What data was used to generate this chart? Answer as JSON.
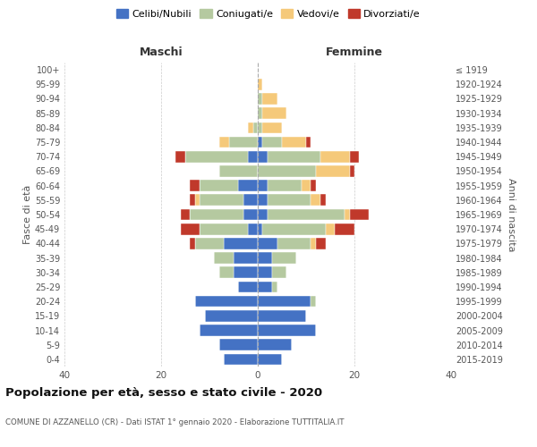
{
  "age_groups": [
    "0-4",
    "5-9",
    "10-14",
    "15-19",
    "20-24",
    "25-29",
    "30-34",
    "35-39",
    "40-44",
    "45-49",
    "50-54",
    "55-59",
    "60-64",
    "65-69",
    "70-74",
    "75-79",
    "80-84",
    "85-89",
    "90-94",
    "95-99",
    "100+"
  ],
  "birth_years": [
    "2015-2019",
    "2010-2014",
    "2005-2009",
    "2000-2004",
    "1995-1999",
    "1990-1994",
    "1985-1989",
    "1980-1984",
    "1975-1979",
    "1970-1974",
    "1965-1969",
    "1960-1964",
    "1955-1959",
    "1950-1954",
    "1945-1949",
    "1940-1944",
    "1935-1939",
    "1930-1934",
    "1925-1929",
    "1920-1924",
    "≤ 1919"
  ],
  "colors": {
    "celibi": "#4472c4",
    "coniugati": "#b5c9a0",
    "vedovi": "#f5c97a",
    "divorziati": "#c0392b"
  },
  "maschi": {
    "celibi": [
      7,
      8,
      12,
      11,
      13,
      4,
      5,
      5,
      7,
      2,
      3,
      3,
      4,
      0,
      2,
      0,
      0,
      0,
      0,
      0,
      0
    ],
    "coniugati": [
      0,
      0,
      0,
      0,
      0,
      0,
      3,
      4,
      6,
      10,
      11,
      9,
      8,
      8,
      13,
      6,
      1,
      0,
      0,
      0,
      0
    ],
    "vedovi": [
      0,
      0,
      0,
      0,
      0,
      0,
      0,
      0,
      0,
      0,
      0,
      1,
      0,
      0,
      0,
      2,
      1,
      0,
      0,
      0,
      0
    ],
    "divorziati": [
      0,
      0,
      0,
      0,
      0,
      0,
      0,
      0,
      1,
      4,
      2,
      1,
      2,
      0,
      2,
      0,
      0,
      0,
      0,
      0,
      0
    ]
  },
  "femmine": {
    "celibi": [
      5,
      7,
      12,
      10,
      11,
      3,
      3,
      3,
      4,
      1,
      2,
      2,
      2,
      0,
      2,
      1,
      0,
      0,
      0,
      0,
      0
    ],
    "coniugati": [
      0,
      0,
      0,
      0,
      1,
      1,
      3,
      5,
      7,
      13,
      16,
      9,
      7,
      12,
      11,
      4,
      1,
      1,
      1,
      0,
      0
    ],
    "vedovi": [
      0,
      0,
      0,
      0,
      0,
      0,
      0,
      0,
      1,
      2,
      1,
      2,
      2,
      7,
      6,
      5,
      4,
      5,
      3,
      1,
      0
    ],
    "divorziati": [
      0,
      0,
      0,
      0,
      0,
      0,
      0,
      0,
      2,
      4,
      4,
      1,
      1,
      1,
      2,
      1,
      0,
      0,
      0,
      0,
      0
    ]
  },
  "xlim": 40,
  "title": "Popolazione per età, sesso e stato civile - 2020",
  "subtitle": "COMUNE DI AZZANELLO (CR) - Dati ISTAT 1° gennaio 2020 - Elaborazione TUTTITALIA.IT",
  "xlabel_left": "Maschi",
  "xlabel_right": "Femmine",
  "ylabel": "Fasce di età",
  "ylabel_right": "Anni di nascita",
  "legend_labels": [
    "Celibi/Nubili",
    "Coniugati/e",
    "Vedovi/e",
    "Divorziati/e"
  ]
}
